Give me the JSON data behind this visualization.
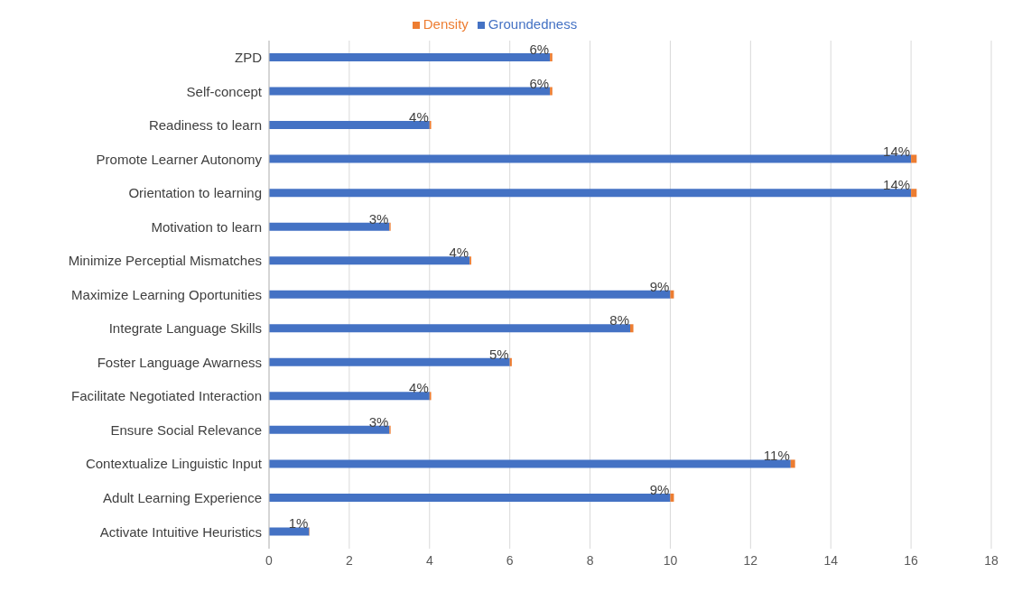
{
  "chart_data": {
    "type": "bar",
    "orientation": "horizontal",
    "stacked": true,
    "categories": [
      "ZPD",
      "Self-concept",
      "Readiness to learn",
      "Promote Learner Autonomy",
      "Orientation to learning",
      "Motivation to learn",
      "Minimize Perceptial Mismatches",
      "Maximize Learning Oportunities",
      "Integrate Language Skills",
      "Foster Language Awarness",
      "Facilitate Negotiated Interaction",
      "Ensure Social Relevance",
      "Contextualize Linguistic Input",
      "Adult Learning Experience",
      "Activate Intuitive Heuristics"
    ],
    "series": [
      {
        "name": "Groundedness",
        "color": "#4472c4",
        "values": [
          7,
          7,
          4,
          16,
          16,
          3,
          5,
          10,
          9,
          6,
          4,
          3,
          13,
          10,
          1
        ]
      },
      {
        "name": "Density",
        "color": "#ed7d31",
        "values": [
          0.06,
          0.06,
          0.04,
          0.14,
          0.14,
          0.03,
          0.04,
          0.09,
          0.08,
          0.05,
          0.04,
          0.03,
          0.11,
          0.09,
          0.01
        ],
        "value_labels": [
          "6%",
          "6%",
          "4%",
          "14%",
          "14%",
          "3%",
          "4%",
          "9%",
          "8%",
          "5%",
          "4%",
          "3%",
          "11%",
          "9%",
          "1%"
        ]
      }
    ],
    "xlim": [
      0,
      18
    ],
    "xticks": [
      0,
      2,
      4,
      6,
      8,
      10,
      12,
      14,
      16,
      18
    ],
    "grid": "x",
    "legend": "top"
  }
}
